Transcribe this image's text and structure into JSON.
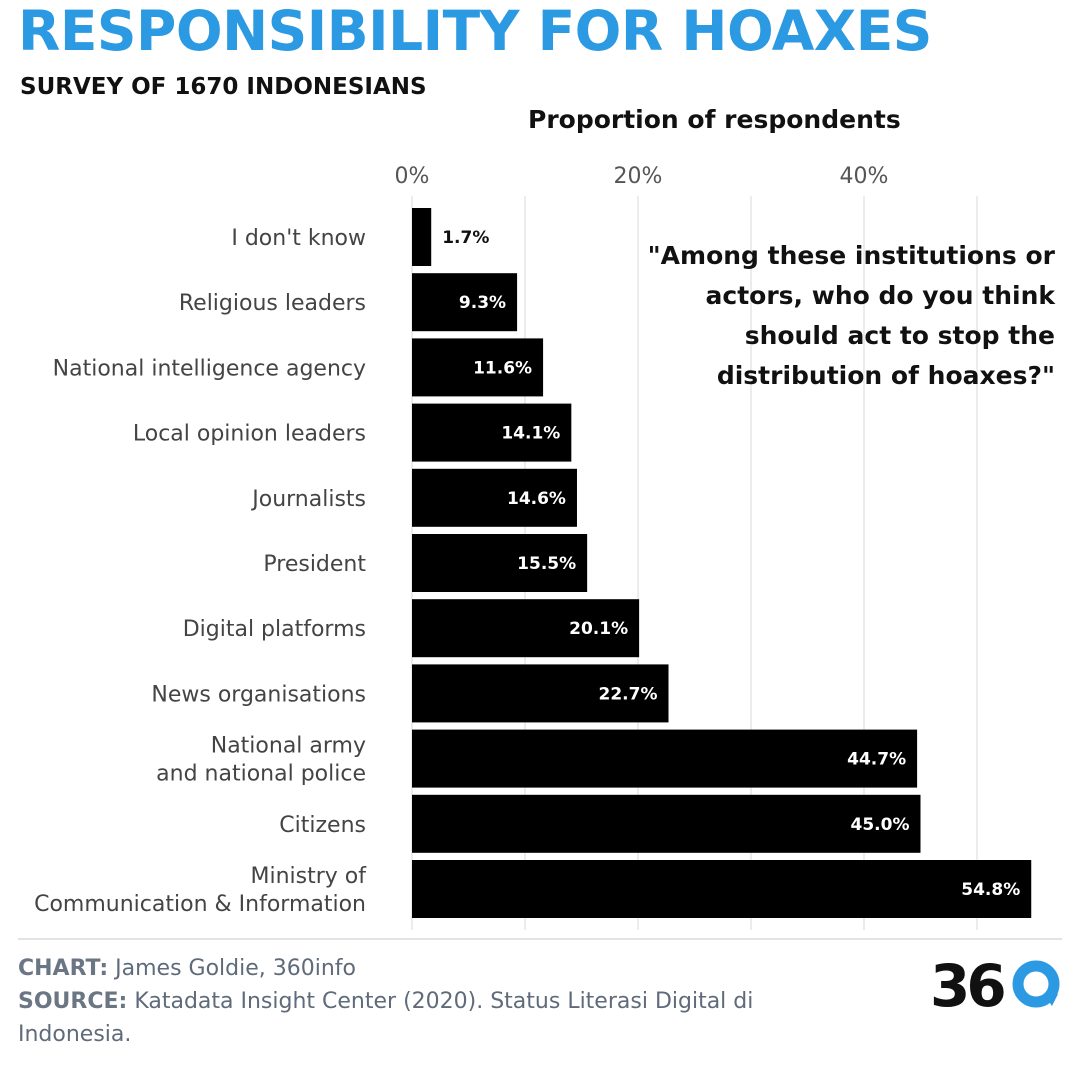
{
  "header": {
    "title": "RESPONSIBILITY FOR HOAXES",
    "subtitle": "SURVEY OF 1670 INDONESIANS"
  },
  "question": "\"Among these institutions or actors, who do you think should act to stop the distribution of hoaxes?\"",
  "footer": {
    "chart_label": "CHART:",
    "chart_text": "James Goldie, 360info",
    "source_label": "SOURCE:",
    "source_text": "Katadata Insight Center (2020). Status Literasi Digital di Indonesia.",
    "logo_text": "360"
  },
  "colors": {
    "title": "#2b9ae2",
    "bar": "#000000",
    "bar_label": "#ffffff",
    "gridline": "#e6e6e6",
    "logo_accent": "#2b9ae2"
  },
  "chart_data": {
    "type": "bar",
    "orientation": "horizontal",
    "title": "RESPONSIBILITY FOR HOAXES",
    "subtitle": "SURVEY OF 1670 INDONESIANS",
    "xlabel": "Proportion of respondents",
    "ylabel": "",
    "xlim": [
      0,
      55
    ],
    "xticks": [
      0,
      20,
      40
    ],
    "xtick_labels": [
      "0%",
      "20%",
      "40%"
    ],
    "grid": true,
    "categories": [
      "I don't know",
      "Religious leaders",
      "National intelligence agency",
      "Local opinion leaders",
      "Journalists",
      "President",
      "Digital platforms",
      "News organisations",
      "National army\nand national police",
      "Citizens",
      "Ministry of\nCommunication & Information"
    ],
    "values": [
      1.7,
      9.3,
      11.6,
      14.1,
      14.6,
      15.5,
      20.1,
      22.7,
      44.7,
      45.0,
      54.8
    ],
    "value_labels": [
      "1.7%",
      "9.3%",
      "11.6%",
      "14.1%",
      "14.6%",
      "15.5%",
      "20.1%",
      "22.7%",
      "44.7%",
      "45.0%",
      "54.8%"
    ]
  }
}
